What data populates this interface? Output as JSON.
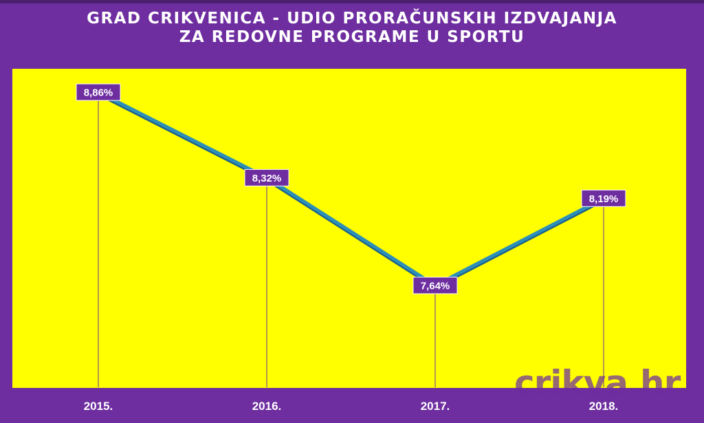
{
  "chart_data": {
    "type": "line",
    "title_lines": [
      "GRAD CRIKVENICA - UDIO PRORAČUNSKIH IZDVAJANJA",
      "ZA REDOVNE PROGRAME U SPORTU"
    ],
    "categories": [
      "2015.",
      "2016.",
      "2017.",
      "2018."
    ],
    "values": [
      8.86,
      8.32,
      7.64,
      8.19
    ],
    "data_labels": [
      "8,86%",
      "8,32%",
      "7,64%",
      "8,19%"
    ],
    "xlabel": "",
    "ylabel": "",
    "grid": "vertical drop lines from each point",
    "legend": "none",
    "colors": {
      "background": "#6e2ea0",
      "plot_background": "#ffff00",
      "line": "#2d8fb8",
      "label_box": "#6e2ea0",
      "text": "#ffffff"
    }
  },
  "watermark": "crikva.hr"
}
